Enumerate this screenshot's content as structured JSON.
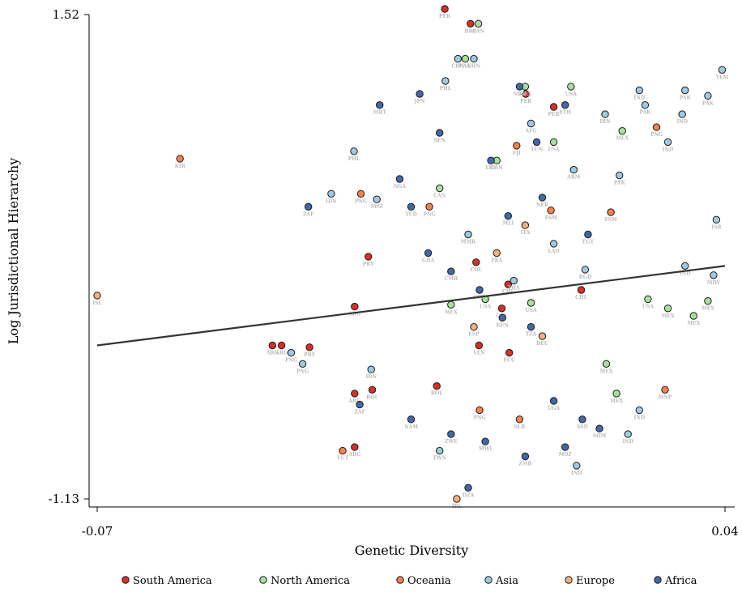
{
  "chart_data": {
    "type": "scatter",
    "title": "",
    "xlabel": "Genetic Diversity",
    "ylabel": "Log Jurisdictional Hierarchy",
    "xlim": [
      -0.07,
      0.04
    ],
    "ylim": [
      -1.13,
      1.52
    ],
    "x_tick_labels": [
      "-0.07",
      "0.04"
    ],
    "y_tick_labels": [
      "-1.13",
      "1.52"
    ],
    "grid": false,
    "legend_position": "bottom",
    "fit_line": {
      "x": [
        -0.07,
        0.04
      ],
      "y": [
        -0.3,
        0.13
      ]
    },
    "series": [
      {
        "name": "South America",
        "color": "#d73027",
        "points": [
          {
            "x": -0.0091,
            "y": 1.52,
            "label": "PER"
          },
          {
            "x": -0.0046,
            "y": 1.44,
            "label": "BRA"
          },
          {
            "x": -0.0393,
            "y": -0.3,
            "label": "ARG"
          },
          {
            "x": -0.0377,
            "y": -0.3,
            "label": "ARG"
          },
          {
            "x": -0.0328,
            "y": -0.31,
            "label": "PRY"
          },
          {
            "x": -0.0225,
            "y": 0.18,
            "label": "PRY"
          },
          {
            "x": -0.0249,
            "y": -0.09,
            "label": "ARG"
          },
          {
            "x": -0.0249,
            "y": -0.56,
            "label": "ARG"
          },
          {
            "x": -0.0249,
            "y": -0.85,
            "label": "ARG"
          },
          {
            "x": -0.0218,
            "y": -0.54,
            "label": "BOL"
          },
          {
            "x": -0.0105,
            "y": -0.52,
            "label": "BOL"
          },
          {
            "x": -0.0031,
            "y": -0.3,
            "label": "VEN"
          },
          {
            "x": 0.0009,
            "y": -0.1,
            "label": "COL"
          },
          {
            "x": 0.0022,
            "y": -0.34,
            "label": "ECU"
          },
          {
            "x": 0.0051,
            "y": 1.06,
            "label": "PER"
          },
          {
            "x": 0.01,
            "y": 0.99,
            "label": "PER"
          },
          {
            "x": 0.0148,
            "y": 0.0,
            "label": "CHL"
          },
          {
            "x": 0.002,
            "y": 0.03,
            "label": "CHL"
          },
          {
            "x": -0.0036,
            "y": 0.15,
            "label": "COL"
          }
        ]
      },
      {
        "name": "North America",
        "color": "#a6e19a",
        "points": [
          {
            "x": -0.0032,
            "y": 1.44,
            "label": "CAN"
          },
          {
            "x": -0.0055,
            "y": 1.25,
            "label": "CAN"
          },
          {
            "x": 0.005,
            "y": 1.1,
            "label": "MEX"
          },
          {
            "x": 0.013,
            "y": 1.1,
            "label": "USA"
          },
          {
            "x": 0.022,
            "y": 0.86,
            "label": "MEX"
          },
          {
            "x": 0.0265,
            "y": -0.05,
            "label": "USA"
          },
          {
            "x": 0.03,
            "y": -0.1,
            "label": "MEX"
          },
          {
            "x": 0.0345,
            "y": -0.14,
            "label": "MEX"
          },
          {
            "x": 0.037,
            "y": -0.06,
            "label": "MEX"
          },
          {
            "x": 0.0192,
            "y": -0.4,
            "label": "MEX"
          },
          {
            "x": 0.021,
            "y": -0.56,
            "label": "MEX"
          },
          {
            "x": 0.006,
            "y": -0.07,
            "label": "USA"
          },
          {
            "x": -0.002,
            "y": -0.05,
            "label": "USA"
          },
          {
            "x": -0.008,
            "y": -0.08,
            "label": "MEX"
          },
          {
            "x": 0.0,
            "y": 0.7,
            "label": "CAN"
          },
          {
            "x": 0.01,
            "y": 0.8,
            "label": "USA"
          },
          {
            "x": -0.01,
            "y": 0.55,
            "label": "CAN"
          }
        ]
      },
      {
        "name": "Oceania",
        "color": "#f4824f",
        "points": [
          {
            "x": -0.0555,
            "y": 0.71,
            "label": "KIR"
          },
          {
            "x": -0.0118,
            "y": 0.45,
            "label": "PNG"
          },
          {
            "x": -0.0238,
            "y": 0.52,
            "label": "PNG"
          },
          {
            "x": 0.0035,
            "y": 0.78,
            "label": "FJI"
          },
          {
            "x": 0.0095,
            "y": 0.43,
            "label": "FSM"
          },
          {
            "x": 0.02,
            "y": 0.42,
            "label": "FSM"
          },
          {
            "x": 0.0295,
            "y": -0.54,
            "label": "MNP"
          },
          {
            "x": 0.028,
            "y": 0.88,
            "label": "PNG"
          },
          {
            "x": -0.003,
            "y": -0.65,
            "label": "PNG"
          },
          {
            "x": 0.004,
            "y": -0.7,
            "label": "SLB"
          },
          {
            "x": -0.027,
            "y": -0.87,
            "label": "VUT"
          }
        ]
      },
      {
        "name": "Asia",
        "color": "#9ecae1",
        "points": [
          {
            "x": -0.0068,
            "y": 1.25,
            "label": "CHN"
          },
          {
            "x": -0.004,
            "y": 1.25,
            "label": "CHN"
          },
          {
            "x": 0.037,
            "y": 1.05,
            "label": "PAK"
          },
          {
            "x": 0.0385,
            "y": 0.38,
            "label": "ISR"
          },
          {
            "x": 0.0395,
            "y": 1.19,
            "label": "YEM"
          },
          {
            "x": 0.033,
            "y": 1.08,
            "label": "PAK"
          },
          {
            "x": 0.0325,
            "y": 0.95,
            "label": "IND"
          },
          {
            "x": 0.03,
            "y": 0.8,
            "label": "IND"
          },
          {
            "x": 0.025,
            "y": 1.08,
            "label": "IND"
          },
          {
            "x": 0.026,
            "y": 1.0,
            "label": "PAK"
          },
          {
            "x": 0.033,
            "y": 0.13,
            "label": "IND"
          },
          {
            "x": 0.038,
            "y": 0.08,
            "label": "MDV"
          },
          {
            "x": 0.025,
            "y": -0.65,
            "label": "IND"
          },
          {
            "x": 0.023,
            "y": -0.78,
            "label": "IND"
          },
          {
            "x": 0.014,
            "y": -0.95,
            "label": "IND"
          },
          {
            "x": -0.01,
            "y": -0.87,
            "label": "TWN"
          },
          {
            "x": -0.036,
            "y": -0.34,
            "label": "PNG"
          },
          {
            "x": -0.034,
            "y": -0.4,
            "label": "PNG"
          },
          {
            "x": -0.022,
            "y": -0.43,
            "label": "IDN"
          },
          {
            "x": -0.021,
            "y": 0.49,
            "label": "SWZ"
          },
          {
            "x": -0.029,
            "y": 0.52,
            "label": "IDN"
          },
          {
            "x": -0.025,
            "y": 0.75,
            "label": "PHL"
          },
          {
            "x": -0.009,
            "y": 1.13,
            "label": "PHL"
          },
          {
            "x": 0.006,
            "y": 0.9,
            "label": "AFG"
          },
          {
            "x": 0.019,
            "y": 0.95,
            "label": "IRN"
          },
          {
            "x": 0.0215,
            "y": 0.62,
            "label": "PAK"
          },
          {
            "x": 0.0135,
            "y": 0.65,
            "label": "ARM"
          },
          {
            "x": 0.0155,
            "y": 0.11,
            "label": "BGD"
          },
          {
            "x": 0.003,
            "y": 0.05,
            "label": "THA"
          },
          {
            "x": -0.005,
            "y": 0.3,
            "label": "MMR"
          },
          {
            "x": 0.01,
            "y": 0.25,
            "label": "LAO"
          }
        ]
      },
      {
        "name": "Europe",
        "color": "#f2b07e",
        "points": [
          {
            "x": -0.07,
            "y": -0.03,
            "label": "ISL"
          },
          {
            "x": -0.007,
            "y": -1.13,
            "label": "IRL"
          },
          {
            "x": 0.0,
            "y": 0.2,
            "label": "FRA"
          },
          {
            "x": 0.005,
            "y": 0.35,
            "label": "ITA"
          },
          {
            "x": -0.004,
            "y": -0.2,
            "label": "ESP"
          },
          {
            "x": 0.008,
            "y": -0.25,
            "label": "DEU"
          }
        ]
      },
      {
        "name": "Africa",
        "color": "#4169a8",
        "points": [
          {
            "x": -0.005,
            "y": -1.07,
            "label": "DZA"
          },
          {
            "x": -0.0205,
            "y": 1.0,
            "label": "MRT"
          },
          {
            "x": -0.0135,
            "y": 1.06,
            "label": "JPN"
          },
          {
            "x": 0.004,
            "y": 1.1,
            "label": "SDN"
          },
          {
            "x": 0.012,
            "y": 1.0,
            "label": "ETH"
          },
          {
            "x": -0.017,
            "y": 0.6,
            "label": "NGA"
          },
          {
            "x": -0.015,
            "y": 0.45,
            "label": "TCD"
          },
          {
            "x": -0.012,
            "y": 0.2,
            "label": "GHA"
          },
          {
            "x": -0.008,
            "y": 0.1,
            "label": "CMR"
          },
          {
            "x": -0.003,
            "y": 0.0,
            "label": "COD"
          },
          {
            "x": 0.001,
            "y": -0.15,
            "label": "KEN"
          },
          {
            "x": 0.006,
            "y": -0.2,
            "label": "TZA"
          },
          {
            "x": 0.01,
            "y": -0.6,
            "label": "UGA"
          },
          {
            "x": 0.015,
            "y": -0.7,
            "label": "SSD"
          },
          {
            "x": 0.018,
            "y": -0.75,
            "label": "SOM"
          },
          {
            "x": 0.012,
            "y": -0.85,
            "label": "MOZ"
          },
          {
            "x": 0.005,
            "y": -0.9,
            "label": "ZMB"
          },
          {
            "x": -0.002,
            "y": -0.82,
            "label": "MWI"
          },
          {
            "x": -0.008,
            "y": -0.78,
            "label": "ZWE"
          },
          {
            "x": -0.015,
            "y": -0.7,
            "label": "NAM"
          },
          {
            "x": -0.024,
            "y": -0.62,
            "label": "ZAF"
          },
          {
            "x": -0.033,
            "y": 0.45,
            "label": "ZAF"
          },
          {
            "x": 0.002,
            "y": 0.4,
            "label": "MLI"
          },
          {
            "x": 0.008,
            "y": 0.5,
            "label": "NER"
          },
          {
            "x": 0.016,
            "y": 0.3,
            "label": "EGY"
          },
          {
            "x": -0.001,
            "y": 0.7,
            "label": "LBY"
          },
          {
            "x": 0.007,
            "y": 0.8,
            "label": "TUN"
          },
          {
            "x": -0.01,
            "y": 0.85,
            "label": "SEN"
          }
        ]
      }
    ]
  }
}
